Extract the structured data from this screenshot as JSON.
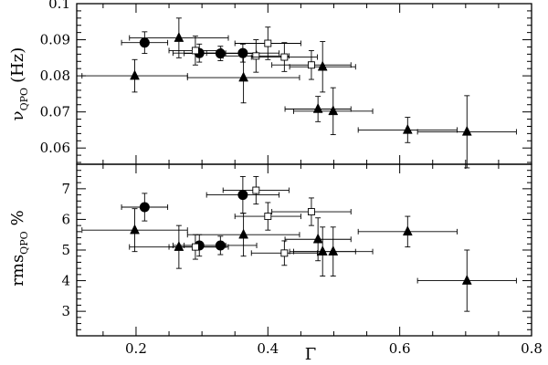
{
  "chart_data": [
    {
      "type": "scatter",
      "panel": "top",
      "xlim": [
        0.11,
        0.8
      ],
      "ylim": [
        0.0555,
        0.1
      ],
      "yticks": [
        0.06,
        0.07,
        0.08,
        0.09,
        0.1
      ],
      "ytick_labels": [
        "0.06",
        "0.07",
        "0.08",
        "0.09",
        "0.1"
      ],
      "ylabel": {
        "main": "ν",
        "sub": "QPO",
        "unit": "(Hz)"
      },
      "grid": false,
      "series": [
        {
          "marker": "triangle",
          "points": [
            {
              "x": 0.198,
              "xerr": 0.08,
              "y": 0.08,
              "yerr": 0.0045
            },
            {
              "x": 0.265,
              "xerr": 0.075,
              "y": 0.0905,
              "yerr": 0.0055
            },
            {
              "x": 0.363,
              "xerr": 0.085,
              "y": 0.0795,
              "yerr": 0.007
            },
            {
              "x": 0.476,
              "xerr": 0.05,
              "y": 0.0708,
              "yerr": 0.0035
            },
            {
              "x": 0.483,
              "xerr": 0.05,
              "y": 0.0825,
              "yerr": 0.007
            },
            {
              "x": 0.499,
              "xerr": 0.06,
              "y": 0.0702,
              "yerr": 0.0065
            },
            {
              "x": 0.612,
              "xerr": 0.075,
              "y": 0.065,
              "yerr": 0.0035
            },
            {
              "x": 0.702,
              "xerr": 0.075,
              "y": 0.0645,
              "yerr": 0.01
            }
          ]
        },
        {
          "marker": "circle",
          "points": [
            {
              "x": 0.213,
              "xerr": 0.035,
              "y": 0.0892,
              "yerr": 0.003
            },
            {
              "x": 0.296,
              "xerr": 0.04,
              "y": 0.0863,
              "yerr": 0.0025
            },
            {
              "x": 0.328,
              "xerr": 0.055,
              "y": 0.0862,
              "yerr": 0.002
            },
            {
              "x": 0.362,
              "xerr": 0.055,
              "y": 0.0863,
              "yerr": 0.0025
            }
          ]
        },
        {
          "marker": "open-square",
          "points": [
            {
              "x": 0.29,
              "xerr": 0.04,
              "y": 0.087,
              "yerr": 0.004
            },
            {
              "x": 0.382,
              "xerr": 0.05,
              "y": 0.0855,
              "yerr": 0.0045
            },
            {
              "x": 0.4,
              "xerr": 0.05,
              "y": 0.089,
              "yerr": 0.0045
            },
            {
              "x": 0.425,
              "xerr": 0.05,
              "y": 0.0852,
              "yerr": 0.004
            },
            {
              "x": 0.466,
              "xerr": 0.06,
              "y": 0.083,
              "yerr": 0.004
            }
          ]
        }
      ]
    },
    {
      "type": "scatter",
      "panel": "bottom",
      "xlim": [
        0.11,
        0.8
      ],
      "ylim": [
        2.2,
        7.8
      ],
      "xticks": [
        0.2,
        0.4,
        0.6,
        0.8
      ],
      "xtick_labels": [
        "0.2",
        "0.4",
        "0.6",
        "0.8"
      ],
      "yticks": [
        3,
        4,
        5,
        6,
        7
      ],
      "ytick_labels": [
        "3",
        "4",
        "5",
        "6",
        "7"
      ],
      "xlabel": "Γ",
      "ylabel": {
        "main": "rms",
        "sub": "QPO",
        "unit": "%"
      },
      "grid": false,
      "series": [
        {
          "marker": "triangle",
          "points": [
            {
              "x": 0.198,
              "xerr": 0.08,
              "y": 5.65,
              "yerr": 0.7
            },
            {
              "x": 0.265,
              "xerr": 0.075,
              "y": 5.1,
              "yerr": 0.7
            },
            {
              "x": 0.363,
              "xerr": 0.085,
              "y": 5.5,
              "yerr": 0.7
            },
            {
              "x": 0.476,
              "xerr": 0.05,
              "y": 5.35,
              "yerr": 0.7
            },
            {
              "x": 0.483,
              "xerr": 0.05,
              "y": 4.95,
              "yerr": 0.8
            },
            {
              "x": 0.499,
              "xerr": 0.06,
              "y": 4.95,
              "yerr": 0.8
            },
            {
              "x": 0.612,
              "xerr": 0.075,
              "y": 5.6,
              "yerr": 0.5
            },
            {
              "x": 0.702,
              "xerr": 0.075,
              "y": 4.0,
              "yerr": 1.0
            }
          ]
        },
        {
          "marker": "circle",
          "points": [
            {
              "x": 0.213,
              "xerr": 0.035,
              "y": 6.4,
              "yerr": 0.45
            },
            {
              "x": 0.296,
              "xerr": 0.04,
              "y": 5.15,
              "yerr": 0.35
            },
            {
              "x": 0.328,
              "xerr": 0.055,
              "y": 5.15,
              "yerr": 0.3
            },
            {
              "x": 0.362,
              "xerr": 0.055,
              "y": 6.8,
              "yerr": 0.6
            }
          ]
        },
        {
          "marker": "open-square",
          "points": [
            {
              "x": 0.29,
              "xerr": 0.04,
              "y": 5.1,
              "yerr": 0.4
            },
            {
              "x": 0.382,
              "xerr": 0.05,
              "y": 6.95,
              "yerr": 0.45
            },
            {
              "x": 0.4,
              "xerr": 0.05,
              "y": 6.1,
              "yerr": 0.45
            },
            {
              "x": 0.425,
              "xerr": 0.05,
              "y": 4.9,
              "yerr": 0.4
            },
            {
              "x": 0.466,
              "xerr": 0.06,
              "y": 6.25,
              "yerr": 0.45
            }
          ]
        }
      ]
    }
  ]
}
